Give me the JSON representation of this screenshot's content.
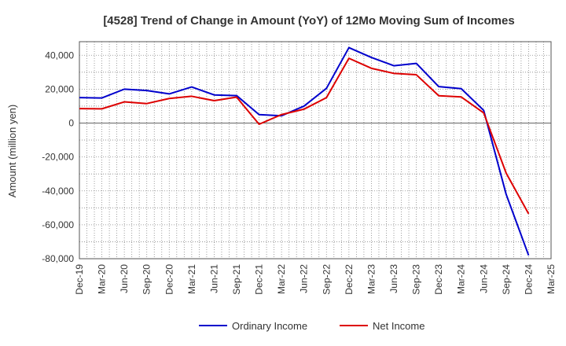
{
  "chart_data": {
    "type": "line",
    "title": "[4528]  Trend of Change in Amount (YoY) of 12Mo Moving Sum of Incomes",
    "ylabel": "Amount (million yen)",
    "xlabel": "",
    "ylim": [
      -80000,
      48000
    ],
    "yticks": [
      40000,
      20000,
      0,
      -20000,
      -40000,
      -60000,
      -80000
    ],
    "ytick_labels": [
      "40,000",
      "20,000",
      "0",
      "-20,000",
      "-40,000",
      "-60,000",
      "-80,000"
    ],
    "categories": [
      "Dec-19",
      "Mar-20",
      "Jun-20",
      "Sep-20",
      "Dec-20",
      "Mar-21",
      "Jun-21",
      "Sep-21",
      "Dec-21",
      "Mar-22",
      "Jun-22",
      "Sep-22",
      "Dec-22",
      "Mar-23",
      "Jun-23",
      "Sep-23",
      "Dec-23",
      "Mar-24",
      "Jun-24",
      "Sep-24",
      "Dec-24",
      "Mar-25"
    ],
    "grid": true,
    "legend_position": "bottom-center",
    "series": [
      {
        "name": "Ordinary Income",
        "color": "#0000cc",
        "values": [
          15000,
          14800,
          20000,
          19200,
          17200,
          21300,
          16600,
          16200,
          5000,
          4300,
          10000,
          20500,
          44500,
          38700,
          33800,
          35200,
          21500,
          20300,
          7500,
          -42000,
          -78000,
          null
        ]
      },
      {
        "name": "Net Income",
        "color": "#dd0000",
        "values": [
          8500,
          8400,
          12500,
          11500,
          14500,
          15800,
          13200,
          15300,
          -700,
          5000,
          8200,
          15000,
          38200,
          32300,
          29300,
          28500,
          16100,
          15400,
          6000,
          -29500,
          -53500,
          null
        ]
      }
    ]
  }
}
